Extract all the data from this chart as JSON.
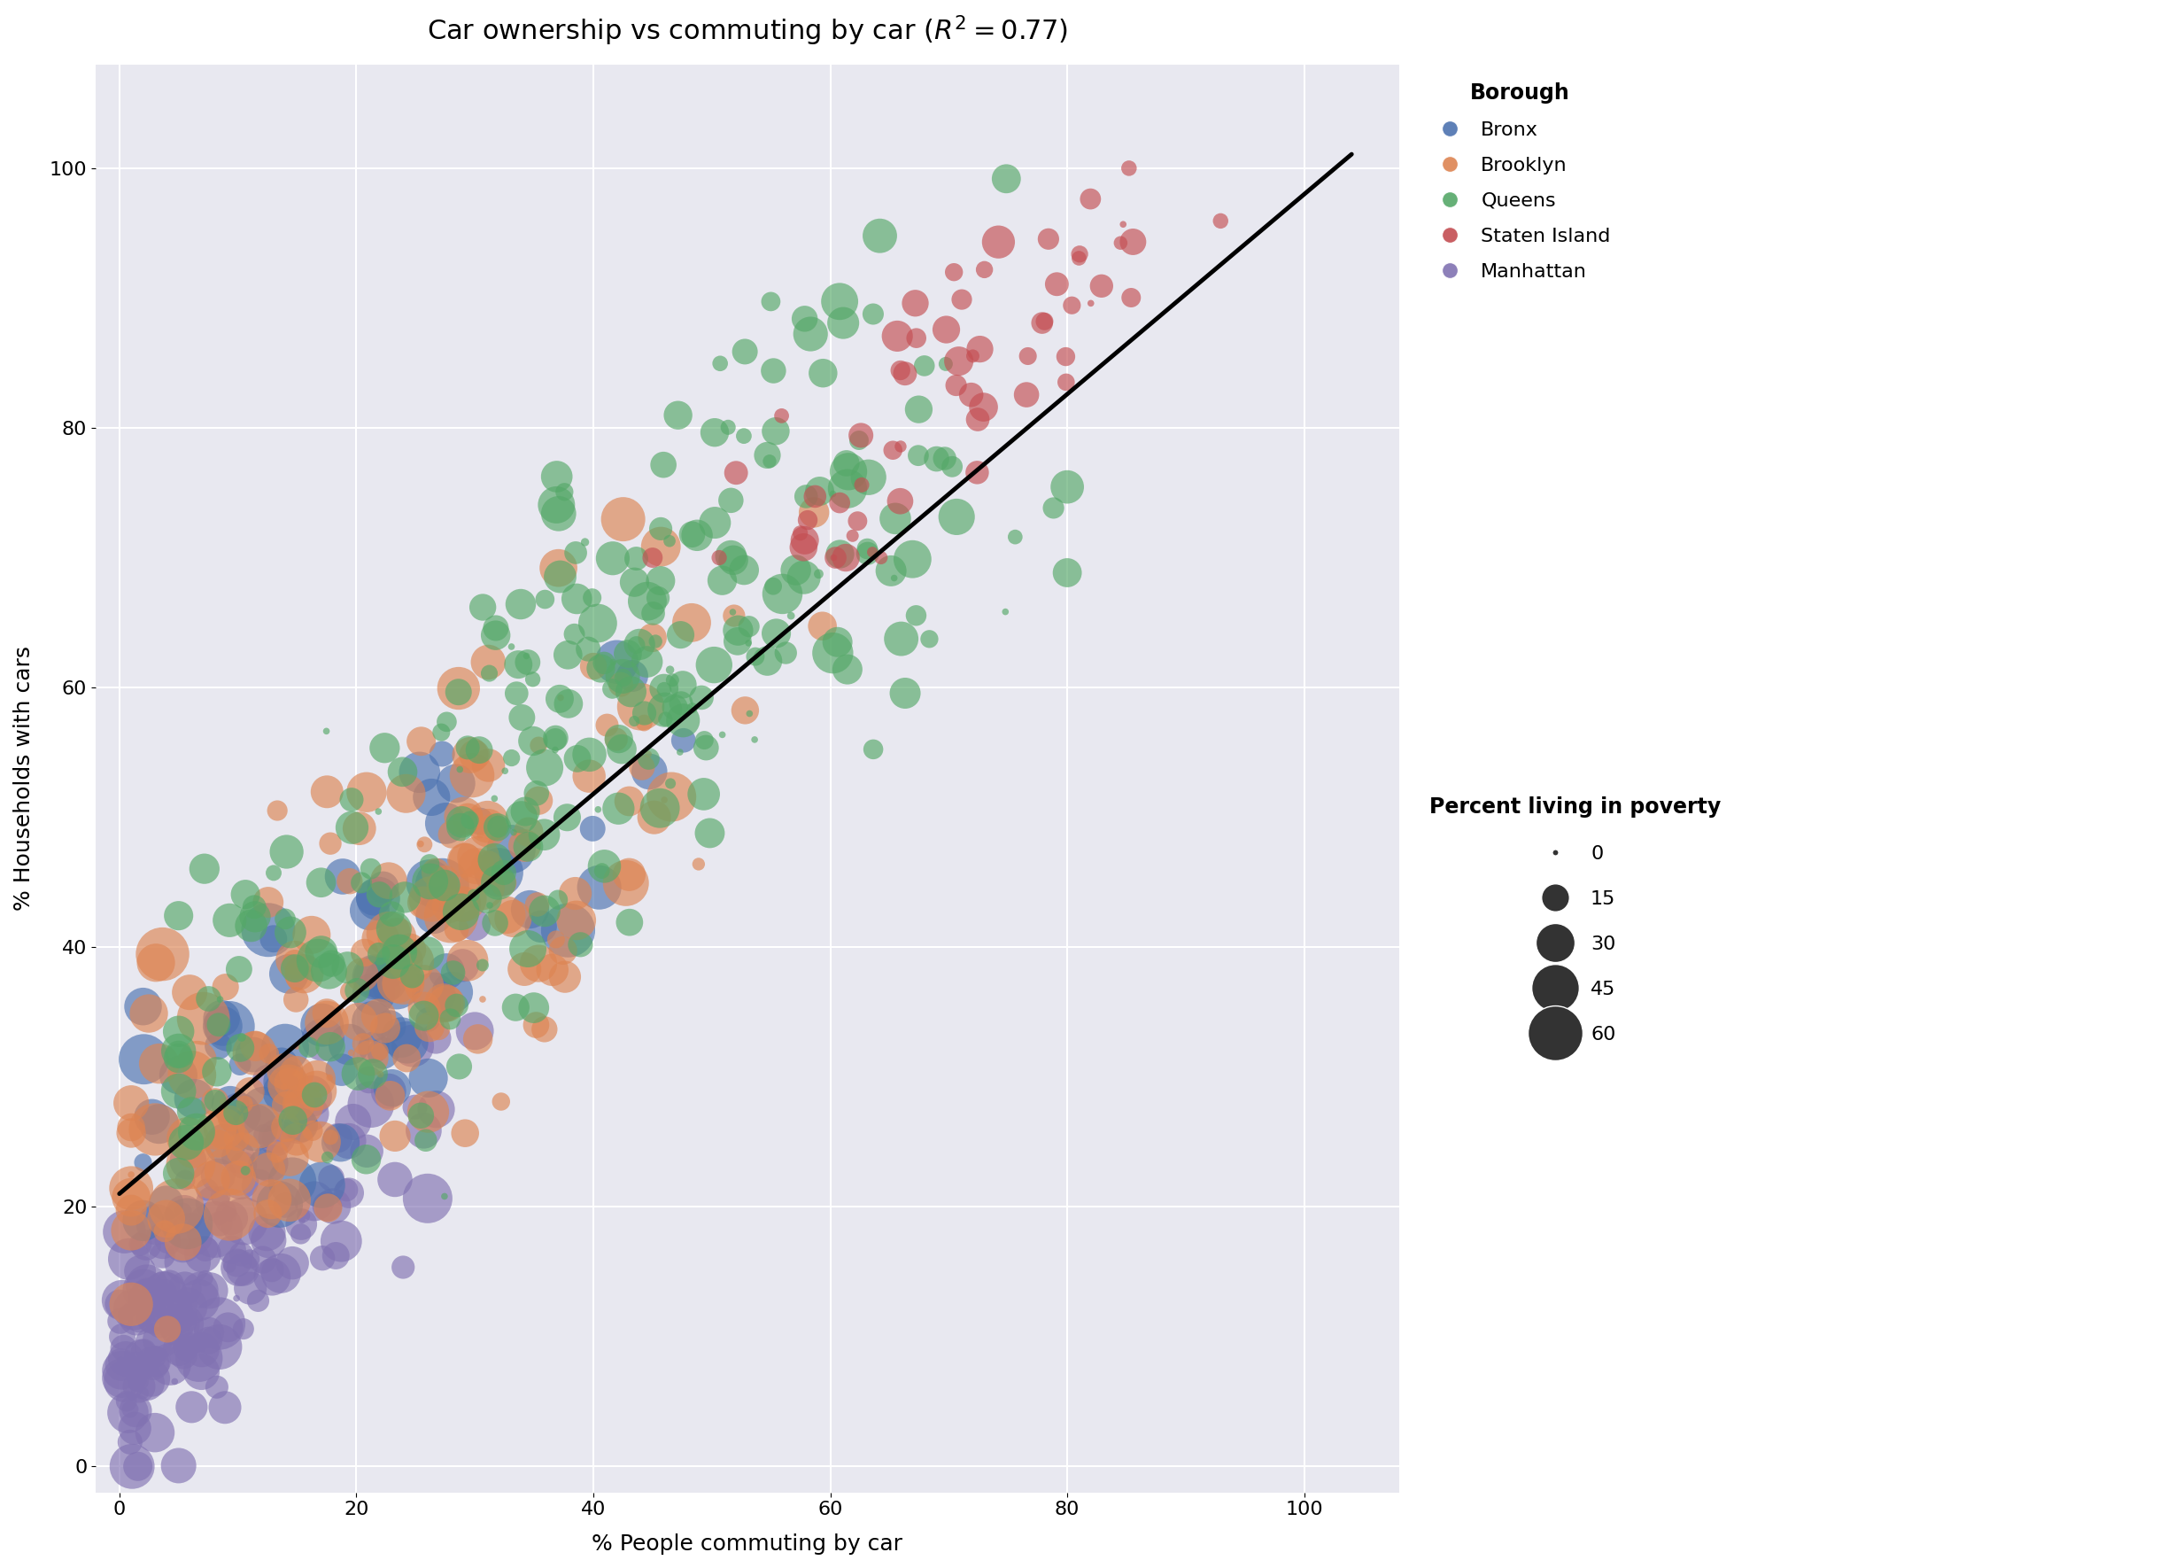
{
  "title": "Car ownership vs commuting by car ($R^2 = 0.77$)",
  "xlabel": "% People commuting by car",
  "ylabel": "% Households with cars",
  "xlim": [
    -2,
    108
  ],
  "ylim": [
    -2,
    108
  ],
  "xticks": [
    0,
    20,
    40,
    60,
    80,
    100
  ],
  "yticks": [
    0,
    20,
    40,
    60,
    80,
    100
  ],
  "plot_bg_color": "#E8E8F0",
  "grid_color": "white",
  "boroughs": [
    "Bronx",
    "Brooklyn",
    "Queens",
    "Staten Island",
    "Manhattan"
  ],
  "borough_colors": {
    "Bronx": "#4C72B0",
    "Brooklyn": "#DD8452",
    "Queens": "#55A868",
    "Staten Island": "#C44E52",
    "Manhattan": "#8172B2"
  },
  "reg_intercept": 21.0,
  "reg_slope": 0.77,
  "size_label": "Percent living in poverty",
  "size_legend_values": [
    0,
    15,
    30,
    45,
    60
  ],
  "alpha": 0.65,
  "title_fontsize": 22,
  "label_fontsize": 18,
  "tick_fontsize": 16,
  "legend_fontsize": 16,
  "min_bubble_area": 30,
  "max_bubble_area": 2200
}
